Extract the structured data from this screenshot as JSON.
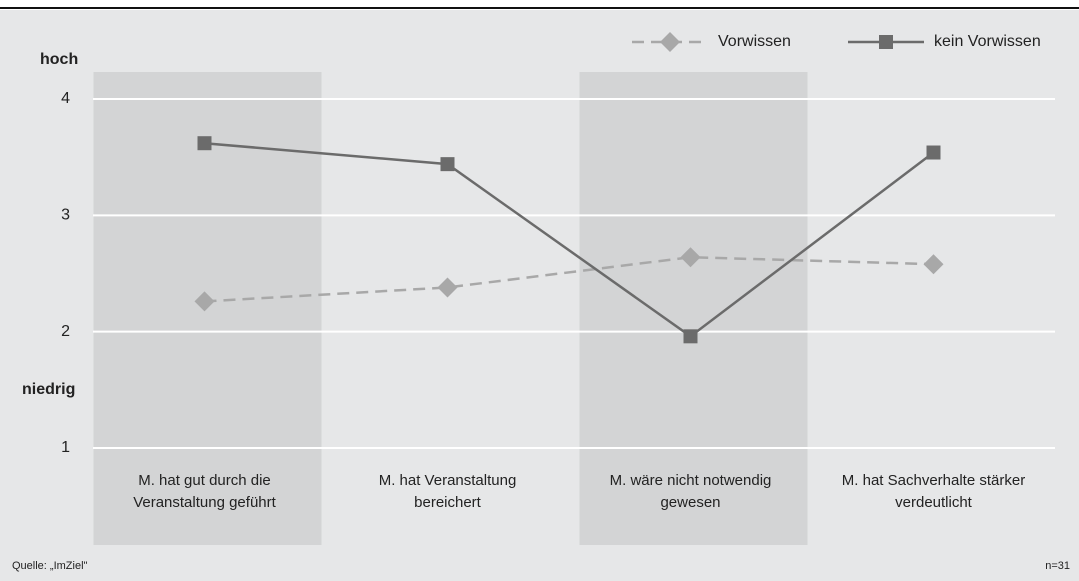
{
  "chart_data": {
    "type": "line",
    "categories": [
      "M. hat gut durch die\nVeranstaltung geführt",
      "M. hat Veranstaltung\nbereichert",
      "M. wäre nicht notwendig\ngewesen",
      "M. hat Sachverhalte stärker\nverdeutlicht"
    ],
    "series": [
      {
        "name": "Vorwissen",
        "color": "#a8a8a8",
        "dash": true,
        "marker": "diamond",
        "values": [
          2.26,
          2.38,
          2.64,
          2.58
        ]
      },
      {
        "name": "kein Vorwissen",
        "color": "#6b6b6b",
        "dash": false,
        "marker": "square",
        "values": [
          3.62,
          3.44,
          1.96,
          3.54
        ]
      }
    ],
    "ylim": [
      1,
      4
    ],
    "yticks": [
      1,
      2,
      3,
      4
    ],
    "grid": true,
    "annotations": [
      "hoch",
      "niedrig"
    ],
    "source": "Quelle: „ImZiel\"",
    "note": "n=31"
  }
}
